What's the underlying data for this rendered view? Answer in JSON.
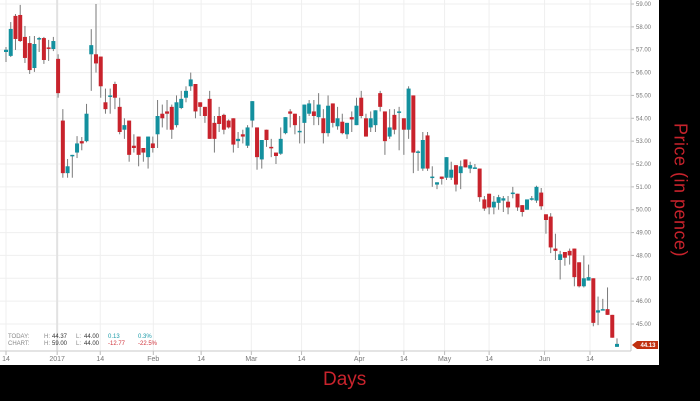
{
  "chart_data": {
    "type": "candlestick",
    "title": "",
    "xlabel": "Days",
    "ylabel": "Price (in pence)",
    "ylim": [
      44,
      59.2
    ],
    "yticks": [
      "45.00",
      "46.00",
      "47.00",
      "48.00",
      "49.00",
      "50.00",
      "51.00",
      "52.00",
      "53.00",
      "54.00",
      "55.00",
      "56.00",
      "57.00",
      "58.00",
      "59.00"
    ],
    "xticks": [
      {
        "label": "14",
        "index": 0
      },
      {
        "label": "2017",
        "index": 10.8
      },
      {
        "label": "14",
        "index": 19.9
      },
      {
        "label": "Feb",
        "index": 31.1
      },
      {
        "label": "14",
        "index": 41.2
      },
      {
        "label": "Mar",
        "index": 51.8
      },
      {
        "label": "14",
        "index": 62.4
      },
      {
        "label": "Apr",
        "index": 74.6
      },
      {
        "label": "14",
        "index": 84
      },
      {
        "label": "May",
        "index": 92.6
      },
      {
        "label": "14",
        "index": 102
      },
      {
        "label": "Jun",
        "index": 113.7
      },
      {
        "label": "14",
        "index": 123.3
      }
    ],
    "grid": true,
    "colors": {
      "up": "#13909e",
      "down": "#c8232c",
      "wick": "#7a7a7a",
      "last_price_tag": "#c0300f"
    },
    "last_price": "44.13",
    "candles_ohlc": [
      [
        56.9,
        57.12,
        56.46,
        57.0
      ],
      [
        56.73,
        58.21,
        56.68,
        57.91
      ],
      [
        58.48,
        58.56,
        56.99,
        57.47
      ],
      [
        58.52,
        58.96,
        57.34,
        57.38
      ],
      [
        57.56,
        58.04,
        56.42,
        56.64
      ],
      [
        57.29,
        57.6,
        55.94,
        56.11
      ],
      [
        56.2,
        57.6,
        56.03,
        57.25
      ],
      [
        57.47,
        57.56,
        56.9,
        57.51
      ],
      [
        57.51,
        57.56,
        56.38,
        56.55
      ],
      [
        57.1,
        57.43,
        56.51,
        57.08
      ],
      [
        57.03,
        57.56,
        56.94,
        57.38
      ],
      [
        56.6,
        56.8,
        54.9,
        55.1
      ],
      [
        53.9,
        54.4,
        51.4,
        51.6
      ],
      [
        51.6,
        52.22,
        51.4,
        51.9
      ],
      [
        52.35,
        52.4,
        51.4,
        52.4
      ],
      [
        52.5,
        53.22,
        52.26,
        52.9
      ],
      [
        53.0,
        53.18,
        52.6,
        52.9
      ],
      [
        53.0,
        54.63,
        52.95,
        54.2
      ],
      [
        56.8,
        57.9,
        55.2,
        57.2
      ],
      [
        56.8,
        59.0,
        56.0,
        56.4
      ],
      [
        56.7,
        56.7,
        54.9,
        55.4
      ],
      [
        54.7,
        55.3,
        54.2,
        54.4
      ],
      [
        55.0,
        55.3,
        54.2,
        55.0
      ],
      [
        55.5,
        55.6,
        54.4,
        54.9
      ],
      [
        54.5,
        54.9,
        53.3,
        53.4
      ],
      [
        53.5,
        54.0,
        53.1,
        53.7
      ],
      [
        53.9,
        53.9,
        52.1,
        52.4
      ],
      [
        52.8,
        53.3,
        52.5,
        52.7
      ],
      [
        53.2,
        53.2,
        51.9,
        52.4
      ],
      [
        52.7,
        52.7,
        52.1,
        52.5
      ],
      [
        52.3,
        53.2,
        51.8,
        53.2
      ],
      [
        52.9,
        53.2,
        52.5,
        52.7
      ],
      [
        53.3,
        54.8,
        52.7,
        54.1
      ],
      [
        54.2,
        54.6,
        53.6,
        54.0
      ],
      [
        54.3,
        54.8,
        53.5,
        54.2
      ],
      [
        54.5,
        54.6,
        53.1,
        53.5
      ],
      [
        53.7,
        55.0,
        53.6,
        54.7
      ],
      [
        54.45,
        55.2,
        54.4,
        54.85
      ],
      [
        54.9,
        55.4,
        54.7,
        55.2
      ],
      [
        55.4,
        56.0,
        55.2,
        55.7
      ],
      [
        55.5,
        55.5,
        54.0,
        54.3
      ],
      [
        54.7,
        54.7,
        54.1,
        54.5
      ],
      [
        54.5,
        54.5,
        53.8,
        54.1
      ],
      [
        54.85,
        55.2,
        53.1,
        53.1
      ],
      [
        53.8,
        54.1,
        52.5,
        53.1
      ],
      [
        54.1,
        54.5,
        53.4,
        53.75
      ],
      [
        54.15,
        54.2,
        53.3,
        53.5
      ],
      [
        53.9,
        53.95,
        53.55,
        53.6
      ],
      [
        54.0,
        54.0,
        52.5,
        52.85
      ],
      [
        53.0,
        53.4,
        52.7,
        53.1
      ],
      [
        53.3,
        53.5,
        52.9,
        53.2
      ],
      [
        52.8,
        53.7,
        52.7,
        53.6
      ],
      [
        53.9,
        54.75,
        53.6,
        54.75
      ],
      [
        53.6,
        53.6,
        51.75,
        52.3
      ],
      [
        52.2,
        53.05,
        51.8,
        53.05
      ],
      [
        53.5,
        53.5,
        52.75,
        53.05
      ],
      [
        52.75,
        53.1,
        52.3,
        52.7
      ],
      [
        52.5,
        52.5,
        52.0,
        52.35
      ],
      [
        52.45,
        53.6,
        52.4,
        53.1
      ],
      [
        53.35,
        54.05,
        53.3,
        54.05
      ],
      [
        54.3,
        54.4,
        53.6,
        54.2
      ],
      [
        54.2,
        54.2,
        53.3,
        53.7
      ],
      [
        53.4,
        54.1,
        52.9,
        53.45
      ],
      [
        53.8,
        54.6,
        52.9,
        54.6
      ],
      [
        54.2,
        54.8,
        54.1,
        54.65
      ],
      [
        54.3,
        54.8,
        53.7,
        54.1
      ],
      [
        54.05,
        55.1,
        53.7,
        54.6
      ],
      [
        54.0,
        54.4,
        52.9,
        53.35
      ],
      [
        53.35,
        55.0,
        53.2,
        54.55
      ],
      [
        54.65,
        54.65,
        53.6,
        53.8
      ],
      [
        53.65,
        54.5,
        53.5,
        54.0
      ],
      [
        53.85,
        54.2,
        53.3,
        53.35
      ],
      [
        53.3,
        53.8,
        53.1,
        53.8
      ],
      [
        54.05,
        54.3,
        53.4,
        53.95
      ],
      [
        53.7,
        54.9,
        53.7,
        54.55
      ],
      [
        54.9,
        55.2,
        54.0,
        54.1
      ],
      [
        54.0,
        54.2,
        53.2,
        53.2
      ],
      [
        53.6,
        54.3,
        53.4,
        54.0
      ],
      [
        53.7,
        54.35,
        53.4,
        54.35
      ],
      [
        55.1,
        55.2,
        54.3,
        54.5
      ],
      [
        54.3,
        54.3,
        52.4,
        53.0
      ],
      [
        53.2,
        54.4,
        53.1,
        53.6
      ],
      [
        54.15,
        54.4,
        53.3,
        53.5
      ],
      [
        54.25,
        54.5,
        52.6,
        54.3
      ],
      [
        54.0,
        54.0,
        52.4,
        53.5
      ],
      [
        53.5,
        55.4,
        53.1,
        55.3
      ],
      [
        55.0,
        55.0,
        51.6,
        52.5
      ],
      [
        52.5,
        52.6,
        51.7,
        52.55
      ],
      [
        51.8,
        53.4,
        51.7,
        53.05
      ],
      [
        53.25,
        53.4,
        51.7,
        51.8
      ],
      [
        51.45,
        51.9,
        51.0,
        51.45
      ],
      [
        51.1,
        51.2,
        50.9,
        51.2
      ],
      [
        51.45,
        51.45,
        51.1,
        51.35
      ],
      [
        51.4,
        52.3,
        51.3,
        52.3
      ],
      [
        51.4,
        52.1,
        51.3,
        51.75
      ],
      [
        51.95,
        51.95,
        50.8,
        51.1
      ],
      [
        51.6,
        52.15,
        50.9,
        51.9
      ],
      [
        52.2,
        52.2,
        51.85,
        51.85
      ],
      [
        51.8,
        52.1,
        51.6,
        51.95
      ],
      [
        51.8,
        52.0,
        51.8,
        51.85
      ],
      [
        51.8,
        51.8,
        50.35,
        50.55
      ],
      [
        50.45,
        50.6,
        49.95,
        50.05
      ],
      [
        50.7,
        50.7,
        49.8,
        50.1
      ],
      [
        50.1,
        50.6,
        49.8,
        50.35
      ],
      [
        50.3,
        50.65,
        50.0,
        50.55
      ],
      [
        50.4,
        50.6,
        49.9,
        50.5
      ],
      [
        50.35,
        50.6,
        49.8,
        50.1
      ],
      [
        50.7,
        51.0,
        50.5,
        50.75
      ],
      [
        50.7,
        50.7,
        49.95,
        50.1
      ],
      [
        50.2,
        50.2,
        49.7,
        49.9
      ],
      [
        50.0,
        50.45,
        50.0,
        50.45
      ],
      [
        50.45,
        50.6,
        50.4,
        50.5
      ],
      [
        50.4,
        51.05,
        50.3,
        51.0
      ],
      [
        50.75,
        50.95,
        50.0,
        50.15
      ],
      [
        49.8,
        49.8,
        48.95,
        49.55
      ],
      [
        49.7,
        49.85,
        48.1,
        48.35
      ],
      [
        48.3,
        48.95,
        47.8,
        48.2
      ],
      [
        47.8,
        48.2,
        46.95,
        48.05
      ],
      [
        48.15,
        48.15,
        47.55,
        47.9
      ],
      [
        48.2,
        48.3,
        47.6,
        48.0
      ],
      [
        48.3,
        48.3,
        46.65,
        47.05
      ],
      [
        47.7,
        47.7,
        46.6,
        46.65
      ],
      [
        46.65,
        48.0,
        46.6,
        47.0
      ],
      [
        46.9,
        47.6,
        46.9,
        47.05
      ],
      [
        47.0,
        47.0,
        44.9,
        45.05
      ],
      [
        45.5,
        46.2,
        44.95,
        45.6
      ],
      [
        45.6,
        46.1,
        45.6,
        45.65
      ],
      [
        45.65,
        46.6,
        45.4,
        45.4
      ],
      [
        45.4,
        45.4,
        44.4,
        44.4
      ],
      [
        44.0,
        44.37,
        44.0,
        44.13
      ]
    ]
  },
  "info": {
    "today": {
      "label": "TODAY:",
      "h_label": "H:",
      "h": "44.37",
      "l_label": "L:",
      "l": "44.00",
      "change": "0.13",
      "pct": "0.3%"
    },
    "chart": {
      "label": "CHART:",
      "h_label": "H:",
      "h": "59.00",
      "l_label": "L:",
      "l": "44.00",
      "change": "-12.77",
      "pct": "-22.5%"
    }
  }
}
